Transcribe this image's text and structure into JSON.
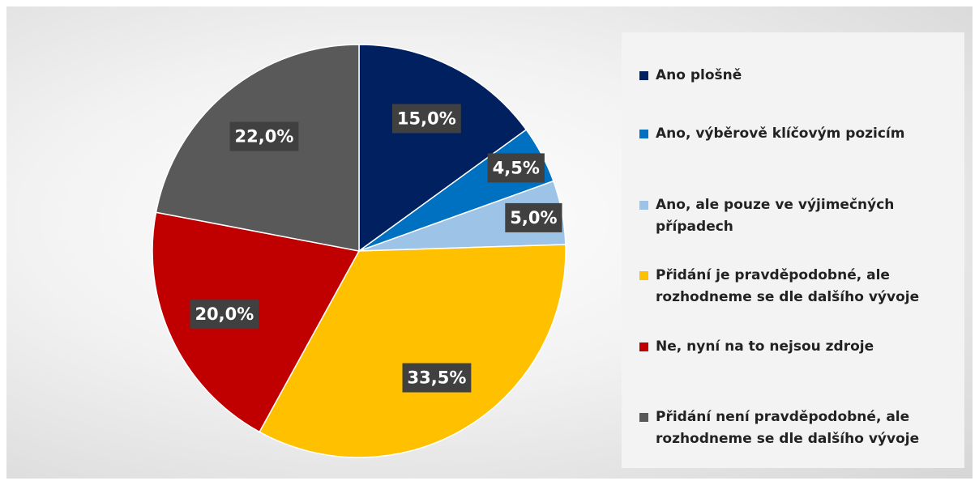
{
  "chart_data": {
    "type": "pie",
    "categories": [
      "Ano plošně",
      "Ano, výběrově klíčovým pozicím",
      "Ano, ale pouze ve výjimečných případech",
      "Přidání je pravděpodobné, ale rozhodneme se dle dalšího vývoje",
      "Ne, nyní na to nejsou zdroje",
      "Přidání není pravděpodobné, ale rozhodneme se dle dalšího vývoje"
    ],
    "values": [
      15.0,
      4.5,
      5.0,
      33.5,
      20.0,
      22.0
    ],
    "value_labels": [
      "15,0%",
      "4,5%",
      "5,0%",
      "33,5%",
      "20,0%",
      "22,0%"
    ],
    "colors": [
      "#002060",
      "#0070c0",
      "#9dc3e6",
      "#ffc000",
      "#c00000",
      "#595959"
    ],
    "legend": "right"
  }
}
